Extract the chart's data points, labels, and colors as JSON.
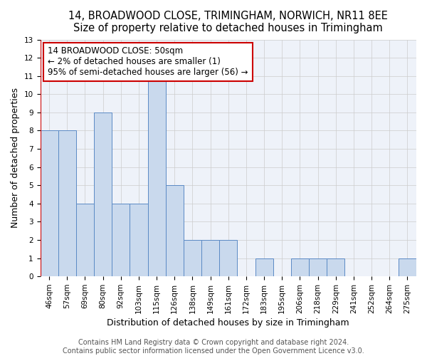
{
  "title": "14, BROADWOOD CLOSE, TRIMINGHAM, NORWICH, NR11 8EE",
  "subtitle": "Size of property relative to detached houses in Trimingham",
  "xlabel": "Distribution of detached houses by size in Trimingham",
  "ylabel": "Number of detached properties",
  "categories": [
    "46sqm",
    "57sqm",
    "69sqm",
    "80sqm",
    "92sqm",
    "103sqm",
    "115sqm",
    "126sqm",
    "138sqm",
    "149sqm",
    "161sqm",
    "172sqm",
    "183sqm",
    "195sqm",
    "206sqm",
    "218sqm",
    "229sqm",
    "241sqm",
    "252sqm",
    "264sqm",
    "275sqm"
  ],
  "values": [
    8,
    8,
    4,
    9,
    4,
    4,
    11,
    5,
    2,
    2,
    2,
    0,
    1,
    0,
    1,
    1,
    1,
    0,
    0,
    0,
    1
  ],
  "bar_color": "#c9d9ed",
  "bar_edge_color": "#5b8ac5",
  "annotation_box_text": "14 BROADWOOD CLOSE: 50sqm\n← 2% of detached houses are smaller (1)\n95% of semi-detached houses are larger (56) →",
  "annotation_box_color": "#ffffff",
  "annotation_box_edge_color": "#cc0000",
  "annotation_line_color": "#cc0000",
  "ylim": [
    0,
    13
  ],
  "yticks": [
    0,
    1,
    2,
    3,
    4,
    5,
    6,
    7,
    8,
    9,
    10,
    11,
    12,
    13
  ],
  "grid_color": "#cccccc",
  "bg_color": "#eef2f9",
  "fig_bg_color": "#ffffff",
  "footer_text": "Contains HM Land Registry data © Crown copyright and database right 2024.\nContains public sector information licensed under the Open Government Licence v3.0.",
  "title_fontsize": 10.5,
  "subtitle_fontsize": 9,
  "xlabel_fontsize": 9,
  "ylabel_fontsize": 9,
  "tick_fontsize": 7.5,
  "annotation_fontsize": 8.5,
  "footer_fontsize": 7
}
